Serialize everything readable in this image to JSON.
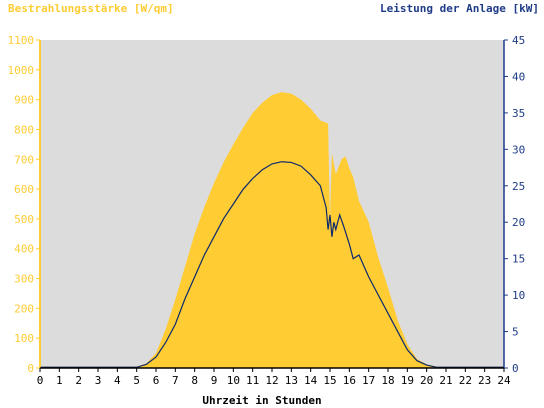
{
  "chart_data": {
    "type": "area",
    "left_axis_title": "Bestrahlungsstärke [W/qm]",
    "right_axis_title": "Leistung der Anlage [kW]",
    "xlabel": "Uhrzeit in Stunden",
    "xlim": [
      0,
      24
    ],
    "x_ticks": [
      "0",
      "1",
      "2",
      "3",
      "4",
      "5",
      "6",
      "7",
      "8",
      "9",
      "10",
      "11",
      "12",
      "13",
      "14",
      "15",
      "16",
      "17",
      "18",
      "19",
      "20",
      "21",
      "22",
      "23",
      "24"
    ],
    "ylim_left": [
      0,
      1100
    ],
    "y_ticks_left": [
      "0",
      "100",
      "200",
      "300",
      "400",
      "500",
      "600",
      "700",
      "800",
      "900",
      "1000",
      "1100"
    ],
    "ylim_right": [
      0,
      45
    ],
    "y_ticks_right": [
      "0",
      "5",
      "10",
      "15",
      "20",
      "25",
      "30",
      "35",
      "40",
      "45"
    ],
    "grid": false,
    "colors": {
      "background": "#dcdcdc",
      "irradiance_fill": "#ffcc33",
      "power_line": "#0e2a6e",
      "left_axis": "#ffcc33",
      "right_axis": "#1f3c88",
      "text_dark": "#000000"
    },
    "series": [
      {
        "axis": "left",
        "style": "area",
        "points": [
          [
            0,
            5
          ],
          [
            5,
            5
          ],
          [
            5.5,
            15
          ],
          [
            6,
            50
          ],
          [
            6.5,
            130
          ],
          [
            7,
            230
          ],
          [
            7.5,
            340
          ],
          [
            8,
            450
          ],
          [
            8.5,
            540
          ],
          [
            9,
            620
          ],
          [
            9.5,
            690
          ],
          [
            10,
            750
          ],
          [
            10.5,
            805
          ],
          [
            11,
            855
          ],
          [
            11.5,
            890
          ],
          [
            12,
            915
          ],
          [
            12.5,
            925
          ],
          [
            13,
            920
          ],
          [
            13.5,
            900
          ],
          [
            14,
            870
          ],
          [
            14.5,
            830
          ],
          [
            14.9,
            820
          ],
          [
            15.0,
            500
          ],
          [
            15.1,
            720
          ],
          [
            15.3,
            650
          ],
          [
            15.6,
            700
          ],
          [
            15.8,
            710
          ],
          [
            16.0,
            670
          ],
          [
            16.2,
            640
          ],
          [
            16.5,
            560
          ],
          [
            17,
            490
          ],
          [
            17.5,
            370
          ],
          [
            18,
            270
          ],
          [
            18.5,
            160
          ],
          [
            19,
            80
          ],
          [
            19.5,
            30
          ],
          [
            20,
            12
          ],
          [
            20.5,
            5
          ],
          [
            24,
            5
          ]
        ]
      },
      {
        "axis": "right",
        "style": "line",
        "points": [
          [
            0,
            0.1
          ],
          [
            5,
            0.1
          ],
          [
            5.5,
            0.5
          ],
          [
            6,
            1.5
          ],
          [
            6.5,
            3.5
          ],
          [
            7,
            6
          ],
          [
            7.5,
            9.5
          ],
          [
            8,
            12.5
          ],
          [
            8.5,
            15.5
          ],
          [
            9,
            18
          ],
          [
            9.5,
            20.5
          ],
          [
            10,
            22.5
          ],
          [
            10.5,
            24.5
          ],
          [
            11,
            26
          ],
          [
            11.5,
            27.2
          ],
          [
            12,
            28
          ],
          [
            12.5,
            28.3
          ],
          [
            13,
            28.2
          ],
          [
            13.5,
            27.7
          ],
          [
            14,
            26.5
          ],
          [
            14.5,
            25
          ],
          [
            14.8,
            22
          ],
          [
            14.9,
            19
          ],
          [
            15.0,
            21
          ],
          [
            15.1,
            18
          ],
          [
            15.2,
            20
          ],
          [
            15.3,
            19
          ],
          [
            15.5,
            21
          ],
          [
            15.7,
            19.5
          ],
          [
            16,
            17
          ],
          [
            16.2,
            15
          ],
          [
            16.5,
            15.5
          ],
          [
            17,
            12.5
          ],
          [
            17.5,
            10
          ],
          [
            18,
            7.5
          ],
          [
            18.5,
            5
          ],
          [
            19,
            2.5
          ],
          [
            19.5,
            1
          ],
          [
            20,
            0.4
          ],
          [
            20.5,
            0.1
          ],
          [
            24,
            0.1
          ]
        ]
      }
    ]
  }
}
